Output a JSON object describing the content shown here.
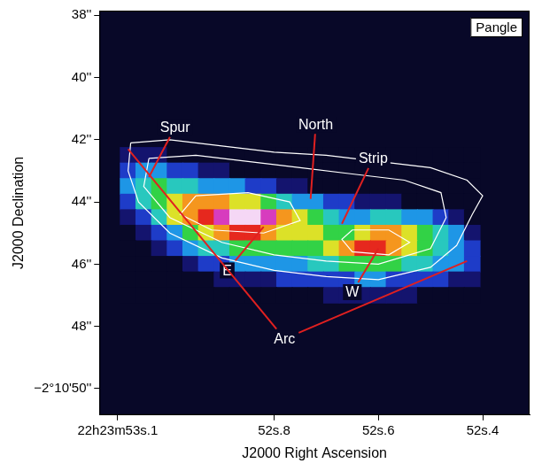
{
  "chart_data": {
    "type": "heatmap",
    "x_label": "J2000 Right Ascension",
    "y_label": "J2000 Declination",
    "panel_label": "Pangle",
    "xlim": [
      53.135,
      52.31
    ],
    "ylim": [
      50.85,
      37.85
    ],
    "xticks": [
      {
        "value": 53.1,
        "label": "22h23m53s.1"
      },
      {
        "value": 52.8,
        "label": "52s.8"
      },
      {
        "value": 52.6,
        "label": "52s.6"
      },
      {
        "value": 52.4,
        "label": "52s.4"
      }
    ],
    "yticks": [
      {
        "value": 38,
        "label": "38''"
      },
      {
        "value": 40,
        "label": "40''"
      },
      {
        "value": 42,
        "label": "42''"
      },
      {
        "value": 44,
        "label": "44''"
      },
      {
        "value": 46,
        "label": "46''"
      },
      {
        "value": 48,
        "label": "48''"
      },
      {
        "value": 50,
        "label": "−2°10'50''"
      }
    ],
    "grid": false,
    "heatmap": {
      "x": [
        53.08,
        53.05,
        53.02,
        52.99,
        52.96,
        52.93,
        52.9,
        52.87,
        52.84,
        52.81,
        52.78,
        52.75,
        52.72,
        52.69,
        52.66,
        52.63,
        52.6,
        52.57,
        52.54,
        52.51,
        52.48,
        52.45,
        52.42
      ],
      "y": [
        42.5,
        43.0,
        43.5,
        44.0,
        44.5,
        45.0,
        45.5,
        46.0,
        46.5,
        47.0
      ],
      "cells": [
        [
          1,
          1,
          1,
          0,
          0,
          0,
          0,
          0,
          0,
          0,
          0,
          0,
          0,
          0,
          0,
          0,
          0,
          0,
          0,
          0,
          0,
          0,
          0
        ],
        [
          2,
          3,
          3,
          2,
          2,
          1,
          1,
          0,
          0,
          0,
          0,
          0,
          0,
          0,
          0,
          0,
          0,
          0,
          0,
          0,
          0,
          0,
          0
        ],
        [
          3,
          4,
          5,
          4,
          4,
          3,
          3,
          3,
          2,
          2,
          1,
          1,
          0,
          0,
          0,
          0,
          0,
          0,
          0,
          0,
          0,
          0,
          0
        ],
        [
          2,
          4,
          5,
          6,
          7,
          7,
          7,
          6,
          6,
          5,
          4,
          3,
          3,
          2,
          2,
          1,
          1,
          1,
          0,
          0,
          0,
          0,
          0
        ],
        [
          1,
          2,
          4,
          6,
          7,
          8,
          9,
          10,
          10,
          9,
          7,
          6,
          5,
          4,
          3,
          3,
          4,
          4,
          3,
          3,
          2,
          1,
          0
        ],
        [
          0,
          1,
          2,
          3,
          5,
          6,
          7,
          8,
          8,
          7,
          6,
          6,
          6,
          5,
          5,
          6,
          7,
          7,
          6,
          5,
          4,
          3,
          1
        ],
        [
          0,
          0,
          1,
          2,
          3,
          4,
          4,
          5,
          5,
          5,
          5,
          5,
          5,
          6,
          7,
          8,
          8,
          7,
          6,
          5,
          4,
          3,
          2
        ],
        [
          0,
          0,
          0,
          0,
          1,
          2,
          2,
          3,
          3,
          3,
          3,
          3,
          4,
          4,
          5,
          5,
          5,
          5,
          4,
          4,
          3,
          3,
          2
        ],
        [
          0,
          0,
          0,
          0,
          0,
          0,
          1,
          1,
          1,
          1,
          2,
          2,
          2,
          2,
          2,
          3,
          3,
          2,
          2,
          2,
          2,
          1,
          1
        ],
        [
          0,
          0,
          0,
          0,
          0,
          0,
          0,
          0,
          0,
          0,
          0,
          0,
          0,
          1,
          1,
          1,
          1,
          1,
          1,
          0,
          0,
          0,
          0
        ]
      ]
    },
    "contours": [
      {
        "color": "#ffffff",
        "x": [
          53.075,
          53.0,
          52.9,
          52.8,
          52.7,
          52.6,
          52.5,
          52.43,
          52.4,
          52.42,
          52.45,
          52.5,
          52.6,
          52.7,
          52.8,
          52.9,
          53.0,
          53.06,
          53.08,
          53.075
        ],
        "y": [
          42.1,
          42.0,
          42.2,
          42.4,
          42.5,
          42.7,
          42.9,
          43.3,
          43.8,
          44.4,
          45.4,
          46.1,
          46.5,
          46.4,
          46.2,
          45.8,
          45.0,
          44.0,
          43.0,
          42.1
        ]
      },
      {
        "color": "#ffffff",
        "x": [
          53.04,
          52.95,
          52.85,
          52.75,
          52.65,
          52.55,
          52.48,
          52.47,
          52.5,
          52.6,
          52.7,
          52.8,
          52.9,
          53.0,
          53.05,
          53.04
        ],
        "y": [
          42.6,
          42.5,
          42.7,
          42.9,
          43.1,
          43.3,
          43.7,
          44.5,
          45.5,
          46.0,
          45.9,
          45.7,
          45.3,
          44.5,
          43.5,
          42.6
        ]
      },
      {
        "color": "#ffffff",
        "x": [
          52.95,
          52.85,
          52.77,
          52.75,
          52.82,
          52.92,
          52.98,
          52.95
        ],
        "y": [
          43.8,
          43.7,
          44.0,
          44.6,
          45.0,
          44.9,
          44.4,
          43.8
        ]
      },
      {
        "color": "#ffffff",
        "x": [
          52.65,
          52.58,
          52.54,
          52.58,
          52.65,
          52.67,
          52.65
        ],
        "y": [
          44.9,
          44.9,
          45.3,
          45.7,
          45.6,
          45.2,
          44.9
        ]
      }
    ],
    "annotations": [
      {
        "text": "Spur",
        "xytext": [
          52.99,
          41.6
        ],
        "xy": [
          [
            53.04,
            43.2
          ]
        ],
        "color": "#e02020"
      },
      {
        "text": "North",
        "xytext": [
          52.72,
          41.5
        ],
        "xy": [
          [
            52.73,
            43.9
          ]
        ],
        "color": "#e02020"
      },
      {
        "text": "Strip",
        "xytext": [
          52.61,
          42.6
        ],
        "xy": [
          [
            52.67,
            44.7
          ]
        ],
        "color": "#e02020"
      },
      {
        "text": "E",
        "xytext": [
          52.89,
          46.2
        ],
        "xy": [
          [
            52.82,
            44.8
          ]
        ],
        "color": "#e02020"
      },
      {
        "text": "W",
        "xytext": [
          52.65,
          46.9
        ],
        "xy": [
          [
            52.6,
            45.5
          ]
        ],
        "color": "#e02020"
      },
      {
        "text": "Arc",
        "xytext": [
          52.78,
          48.4
        ],
        "xy": [
          [
            53.08,
            42.3
          ],
          [
            52.43,
            45.9
          ]
        ],
        "color": "#e02020"
      }
    ]
  }
}
